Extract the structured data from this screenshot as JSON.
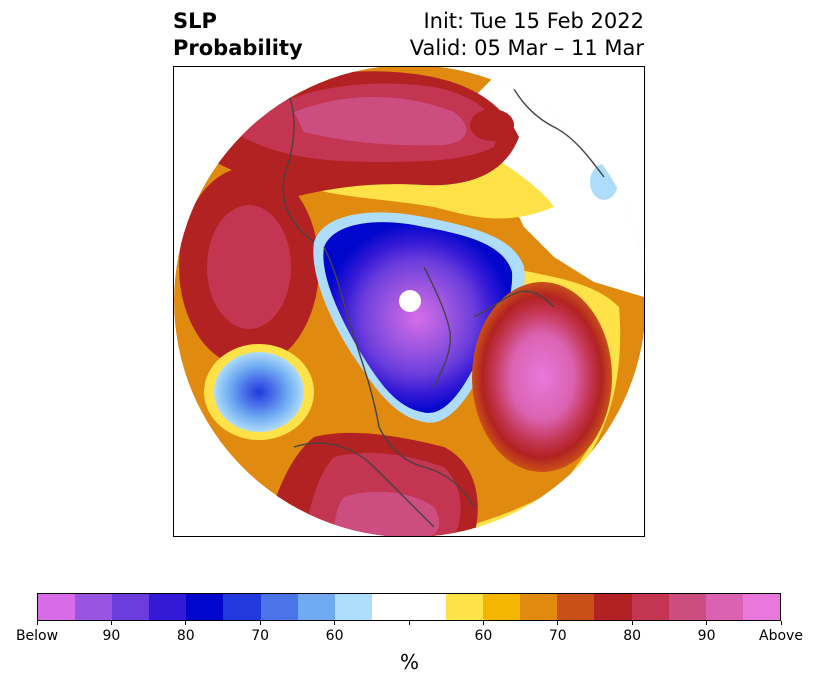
{
  "header": {
    "title_line1": "SLP",
    "title_line2": "Probability",
    "init": "Init: Tue 15 Feb 2022",
    "valid": "Valid: 05 Mar – 11 Mar"
  },
  "map": {
    "projection": "north-polar-stereographic",
    "pole_marker": "white",
    "coastline_color": "#444444"
  },
  "colorbar": {
    "colors": [
      "#d86ce8",
      "#9a55e0",
      "#6b3ddc",
      "#3419d6",
      "#0006cc",
      "#2239dd",
      "#4b74e8",
      "#70abf2",
      "#aedcfb",
      "#ffffff",
      "#ffffff",
      "#ffe247",
      "#f4b600",
      "#e08a10",
      "#c95018",
      "#b22222",
      "#c33550",
      "#cc4e80",
      "#da62b0",
      "#e878dc"
    ],
    "tick_labels": [
      "Below",
      "90",
      "80",
      "70",
      "60",
      "",
      "60",
      "70",
      "80",
      "90",
      "Above"
    ],
    "units": "%"
  }
}
